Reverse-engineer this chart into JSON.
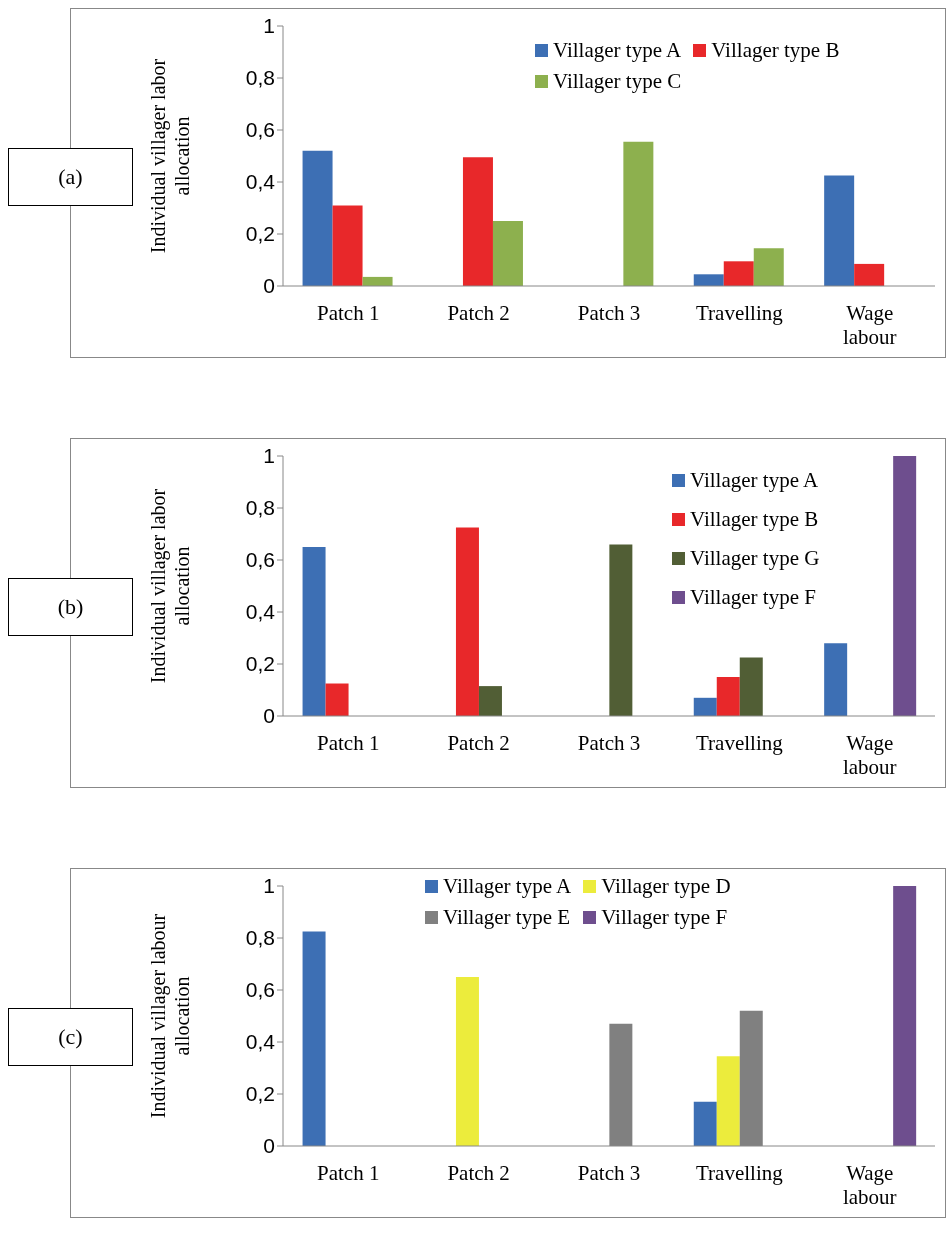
{
  "chart_data": [
    {
      "type": "bar",
      "ylabel": "Individual villager labor allocation",
      "annotations": [
        "(a)"
      ],
      "categories": [
        "Patch 1",
        "Patch 2",
        "Patch 3",
        "Travelling",
        "Wage labour"
      ],
      "series": [
        {
          "name": "Villager type A",
          "color": "#3d6fb4",
          "values": [
            0.52,
            null,
            null,
            0.045,
            0.425
          ]
        },
        {
          "name": "Villager type B",
          "color": "#e8282a",
          "values": [
            0.31,
            0.495,
            null,
            0.095,
            0.085
          ]
        },
        {
          "name": "Villager type C",
          "color": "#8db04e",
          "values": [
            0.035,
            0.25,
            0.555,
            0.145,
            null
          ]
        }
      ],
      "ylim": [
        0,
        1
      ],
      "yticks": [
        {
          "value": 0,
          "label": "0"
        },
        {
          "value": 0.2,
          "label": "0,2"
        },
        {
          "value": 0.4,
          "label": "0,4"
        },
        {
          "value": 0.6,
          "label": "0,6"
        },
        {
          "value": 0.8,
          "label": "0,8"
        },
        {
          "value": 1,
          "label": "1"
        }
      ],
      "grid": false,
      "legend": "top right"
    },
    {
      "type": "bar",
      "ylabel": "Individual villager labor allocation",
      "annotations": [
        "(b)"
      ],
      "categories": [
        "Patch 1",
        "Patch 2",
        "Patch 3",
        "Travelling",
        "Wage labour"
      ],
      "series": [
        {
          "name": "Villager type A",
          "color": "#3d6fb4",
          "values": [
            0.65,
            null,
            null,
            0.07,
            0.28
          ]
        },
        {
          "name": "Villager type B",
          "color": "#e8282a",
          "values": [
            0.125,
            0.725,
            null,
            0.15,
            null
          ]
        },
        {
          "name": "Villager type G",
          "color": "#515e35",
          "values": [
            null,
            0.115,
            0.66,
            0.225,
            null
          ]
        },
        {
          "name": "Villager type F",
          "color": "#6e4e8e",
          "values": [
            null,
            null,
            null,
            null,
            1.0
          ]
        }
      ],
      "ylim": [
        0,
        1
      ],
      "yticks": [
        {
          "value": 0,
          "label": "0"
        },
        {
          "value": 0.2,
          "label": "0,2"
        },
        {
          "value": 0.4,
          "label": "0,4"
        },
        {
          "value": 0.6,
          "label": "0,6"
        },
        {
          "value": 0.8,
          "label": "0,8"
        },
        {
          "value": 1,
          "label": "1"
        }
      ],
      "grid": false,
      "legend": "right"
    },
    {
      "type": "bar",
      "ylabel": "Individual villager labour allocation",
      "annotations": [
        "(c)"
      ],
      "categories": [
        "Patch 1",
        "Patch 2",
        "Patch 3",
        "Travelling",
        "Wage labour"
      ],
      "series": [
        {
          "name": "Villager type A",
          "color": "#3d6fb4",
          "values": [
            0.825,
            null,
            null,
            0.17,
            null
          ]
        },
        {
          "name": "Villager type D",
          "color": "#ecec3c",
          "values": [
            null,
            0.65,
            null,
            0.345,
            null
          ]
        },
        {
          "name": "Villager type E",
          "color": "#808080",
          "values": [
            null,
            null,
            0.47,
            0.52,
            null
          ]
        },
        {
          "name": "Villager type F",
          "color": "#6e4e8e",
          "values": [
            null,
            null,
            null,
            null,
            1.0
          ]
        }
      ],
      "ylim": [
        0,
        1
      ],
      "yticks": [
        {
          "value": 0,
          "label": "0"
        },
        {
          "value": 0.2,
          "label": "0,2"
        },
        {
          "value": 0.4,
          "label": "0,4"
        },
        {
          "value": 0.6,
          "label": "0,6"
        },
        {
          "value": 0.8,
          "label": "0,8"
        },
        {
          "value": 1,
          "label": "1"
        }
      ],
      "grid": false,
      "legend": "top"
    }
  ]
}
